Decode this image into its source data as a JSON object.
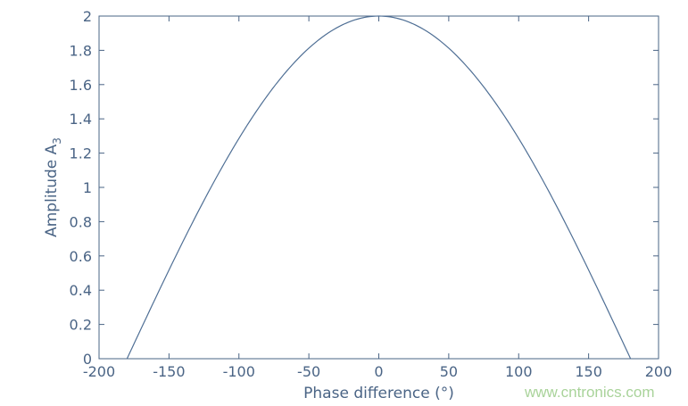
{
  "chart_data": {
    "type": "line",
    "title": "",
    "xlabel": "Phase difference (°)",
    "ylabel_main": "Amplitude A",
    "ylabel_subscript": "3",
    "xlim": [
      -200,
      200
    ],
    "ylim": [
      0,
      2
    ],
    "xticks": [
      "-200",
      "-150",
      "-100",
      "-50",
      "0",
      "50",
      "100",
      "150",
      "200"
    ],
    "yticks": [
      "0",
      "0.2",
      "0.4",
      "0.6",
      "0.8",
      "1",
      "1.2",
      "1.4",
      "1.6",
      "1.8",
      "2"
    ],
    "grid": false,
    "series": [
      {
        "function": "A = 2·cos(φ/2)",
        "x": [
          -180,
          -150,
          -120,
          -90,
          -60,
          -30,
          0,
          30,
          60,
          90,
          120,
          150,
          180
        ],
        "y": [
          0,
          0.518,
          1.0,
          1.414,
          1.732,
          1.932,
          2.0,
          1.932,
          1.732,
          1.414,
          1.0,
          0.518,
          0
        ]
      }
    ],
    "colors": {
      "axis": "#4a6485",
      "line": "#4f6f95"
    }
  },
  "watermark": "www.cntronics.com"
}
